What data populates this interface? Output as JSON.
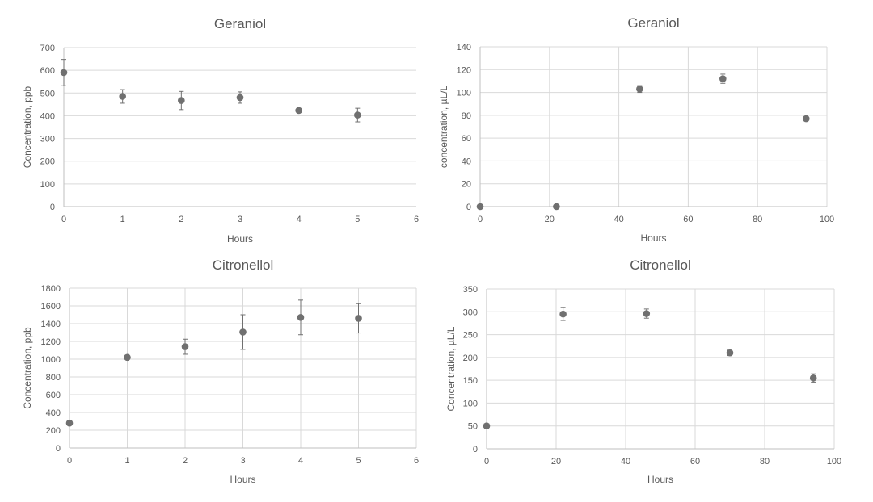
{
  "chart_data": [
    {
      "type": "scatter",
      "title": "Geraniol",
      "xlabel": "Hours",
      "ylabel": "Concentration, ppb",
      "xlim": [
        0,
        6
      ],
      "ylim": [
        0,
        700
      ],
      "xticks": [
        0,
        1,
        2,
        3,
        4,
        5,
        6
      ],
      "yticks": [
        0,
        100,
        200,
        300,
        400,
        500,
        600,
        700
      ],
      "grid": "horizontal",
      "series": [
        {
          "name": "Geraniol",
          "x": [
            0,
            1,
            2,
            3,
            4,
            5
          ],
          "y": [
            590,
            485,
            467,
            480,
            423,
            403
          ],
          "error": [
            58,
            30,
            40,
            25,
            8,
            30
          ]
        }
      ]
    },
    {
      "type": "scatter",
      "title": "Geraniol",
      "xlabel": "Hours",
      "ylabel": "concentration, µL/L",
      "xlim": [
        0,
        100
      ],
      "ylim": [
        0,
        140
      ],
      "xticks": [
        0,
        20,
        40,
        60,
        80,
        100
      ],
      "yticks": [
        0,
        20,
        40,
        60,
        80,
        100,
        120,
        140
      ],
      "grid": "both",
      "series": [
        {
          "name": "Geraniol",
          "x": [
            0,
            22,
            46,
            70,
            94
          ],
          "y": [
            0,
            0,
            103,
            112,
            77
          ],
          "error": [
            0.5,
            0.5,
            3,
            4,
            1
          ]
        }
      ]
    },
    {
      "type": "scatter",
      "title": "Citronellol",
      "xlabel": "Hours",
      "ylabel": "Concentration, ppb",
      "xlim": [
        0,
        6
      ],
      "ylim": [
        0,
        1800
      ],
      "xticks": [
        0,
        1,
        2,
        3,
        4,
        5,
        6
      ],
      "yticks": [
        0,
        200,
        400,
        600,
        800,
        1000,
        1200,
        1400,
        1600,
        1800
      ],
      "grid": "both",
      "series": [
        {
          "name": "Citronellol",
          "x": [
            0,
            1,
            2,
            3,
            4,
            5
          ],
          "y": [
            280,
            1020,
            1140,
            1305,
            1470,
            1460
          ],
          "error": [
            10,
            10,
            85,
            195,
            195,
            165
          ]
        }
      ]
    },
    {
      "type": "scatter",
      "title": "Citronellol",
      "xlabel": "Hours",
      "ylabel": "Concentration, µL/L",
      "xlim": [
        0,
        100
      ],
      "ylim": [
        0,
        350
      ],
      "xticks": [
        0,
        20,
        40,
        60,
        80,
        100
      ],
      "yticks": [
        0,
        50,
        100,
        150,
        200,
        250,
        300,
        350
      ],
      "grid": "both",
      "series": [
        {
          "name": "Citronellol",
          "x": [
            0,
            22,
            46,
            70,
            94
          ],
          "y": [
            50,
            295,
            296,
            210,
            155
          ],
          "error": [
            2,
            14,
            10,
            6,
            9
          ]
        }
      ]
    }
  ]
}
